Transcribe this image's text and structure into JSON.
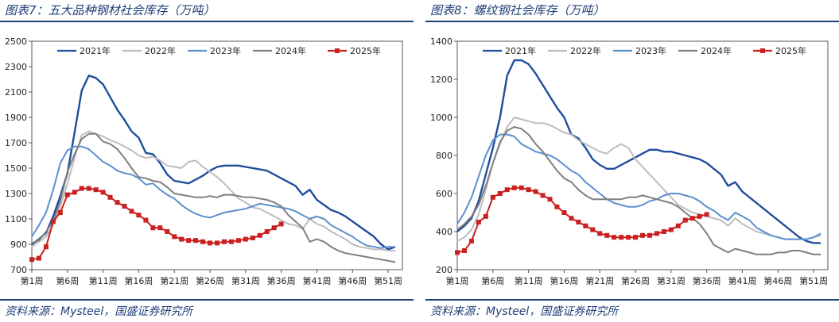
{
  "chart_data": [
    {
      "type": "line",
      "title": "图表7：五大品种钢材社会库存（万吨）",
      "source": "资料来源：Mysteel，国盛证券研究所",
      "xlabel": "",
      "ylabel": "",
      "ylim": [
        700,
        2500
      ],
      "yticks": [
        700,
        900,
        1100,
        1300,
        1500,
        1700,
        1900,
        2100,
        2300,
        2500
      ],
      "xlim": [
        1,
        53
      ],
      "xticks": [
        "第1周",
        "第6周",
        "第11周",
        "第16周",
        "第21周",
        "第26周",
        "第31周",
        "第36周",
        "第41周",
        "第46周",
        "第51周"
      ],
      "legend_position": "top",
      "series": [
        {
          "name": "2021年",
          "color": "#1f4e9c",
          "x": [
            1,
            2,
            3,
            4,
            5,
            6,
            7,
            8,
            9,
            10,
            11,
            12,
            13,
            14,
            15,
            16,
            17,
            18,
            19,
            20,
            21,
            22,
            23,
            24,
            25,
            26,
            27,
            28,
            29,
            30,
            31,
            32,
            33,
            34,
            35,
            36,
            37,
            38,
            39,
            40,
            41,
            42,
            43,
            44,
            45,
            46,
            47,
            48,
            49,
            50,
            51,
            52
          ],
          "values": [
            900,
            940,
            990,
            1120,
            1280,
            1460,
            1780,
            2110,
            2230,
            2210,
            2160,
            2060,
            1960,
            1880,
            1790,
            1740,
            1620,
            1610,
            1540,
            1450,
            1400,
            1390,
            1380,
            1410,
            1440,
            1480,
            1510,
            1520,
            1520,
            1520,
            1510,
            1500,
            1490,
            1480,
            1450,
            1420,
            1390,
            1360,
            1290,
            1330,
            1250,
            1210,
            1170,
            1150,
            1120,
            1080,
            1040,
            1000,
            960,
            900,
            860,
            880
          ]
        },
        {
          "name": "2022年",
          "color": "#bdbdbd",
          "x": [
            1,
            2,
            3,
            4,
            5,
            6,
            7,
            8,
            9,
            10,
            11,
            12,
            13,
            14,
            15,
            16,
            17,
            18,
            19,
            20,
            21,
            22,
            23,
            24,
            25,
            26,
            27,
            28,
            29,
            30,
            31,
            32,
            33,
            34,
            35,
            36,
            37,
            38,
            39,
            40,
            41,
            42,
            43,
            44,
            45,
            46,
            47,
            48,
            49,
            50,
            51,
            52
          ],
          "values": [
            880,
            920,
            960,
            1050,
            1200,
            1380,
            1580,
            1760,
            1790,
            1770,
            1750,
            1720,
            1700,
            1670,
            1640,
            1600,
            1580,
            1590,
            1560,
            1520,
            1510,
            1500,
            1550,
            1560,
            1510,
            1470,
            1430,
            1380,
            1320,
            1260,
            1230,
            1190,
            1180,
            1150,
            1120,
            1090,
            1060,
            1050,
            1020,
            1100,
            1060,
            1040,
            1000,
            970,
            940,
            900,
            880,
            870,
            860,
            860,
            850,
            850
          ]
        },
        {
          "name": "2023年",
          "color": "#5b8fd0",
          "x": [
            1,
            2,
            3,
            4,
            5,
            6,
            7,
            8,
            9,
            10,
            11,
            12,
            13,
            14,
            15,
            16,
            17,
            18,
            19,
            20,
            21,
            22,
            23,
            24,
            25,
            26,
            27,
            28,
            29,
            30,
            31,
            32,
            33,
            34,
            35,
            36,
            37,
            38,
            39,
            40,
            41,
            42,
            43,
            44,
            45,
            46,
            47,
            48,
            49,
            50,
            51,
            52
          ],
          "values": [
            960,
            1050,
            1150,
            1330,
            1540,
            1640,
            1670,
            1670,
            1650,
            1600,
            1550,
            1520,
            1480,
            1460,
            1450,
            1420,
            1370,
            1380,
            1330,
            1290,
            1260,
            1210,
            1170,
            1140,
            1120,
            1110,
            1130,
            1150,
            1160,
            1170,
            1180,
            1200,
            1220,
            1210,
            1200,
            1190,
            1180,
            1160,
            1130,
            1100,
            1120,
            1100,
            1050,
            1020,
            990,
            960,
            920,
            890,
            880,
            870,
            880,
            880
          ]
        },
        {
          "name": "2024年",
          "color": "#7f7f7f",
          "x": [
            1,
            2,
            3,
            4,
            5,
            6,
            7,
            8,
            9,
            10,
            11,
            12,
            13,
            14,
            15,
            16,
            17,
            18,
            19,
            20,
            21,
            22,
            23,
            24,
            25,
            26,
            27,
            28,
            29,
            30,
            31,
            32,
            33,
            34,
            35,
            36,
            37,
            38,
            39,
            40,
            41,
            42,
            43,
            44,
            45,
            46,
            47,
            48,
            49,
            50,
            51,
            52
          ],
          "values": [
            910,
            930,
            1000,
            1080,
            1240,
            1470,
            1610,
            1730,
            1770,
            1770,
            1710,
            1690,
            1650,
            1580,
            1500,
            1430,
            1420,
            1400,
            1390,
            1350,
            1300,
            1290,
            1280,
            1270,
            1270,
            1280,
            1270,
            1290,
            1290,
            1280,
            1270,
            1270,
            1260,
            1250,
            1230,
            1200,
            1130,
            1080,
            1030,
            920,
            940,
            920,
            880,
            850,
            830,
            820,
            810,
            800,
            790,
            780,
            770,
            760
          ]
        },
        {
          "name": "2025年",
          "color": "#cc1f1f",
          "x": [
            1,
            2,
            3,
            4,
            5,
            6,
            7,
            8,
            9,
            10,
            11,
            12,
            13,
            14,
            15,
            16,
            17,
            18,
            19,
            20,
            21,
            22,
            23,
            24,
            25,
            26,
            27,
            28,
            29,
            30,
            31,
            32,
            33,
            34,
            35,
            36
          ],
          "values": [
            780,
            790,
            880,
            1080,
            1150,
            1290,
            1310,
            1340,
            1340,
            1330,
            1310,
            1270,
            1230,
            1200,
            1160,
            1130,
            1090,
            1030,
            1030,
            1000,
            960,
            940,
            930,
            930,
            920,
            910,
            910,
            920,
            920,
            930,
            940,
            950,
            970,
            1000,
            1030,
            1060
          ]
        }
      ]
    },
    {
      "type": "line",
      "title": "图表8：螺纹钢社会库存（万吨）",
      "source": "资料来源：Mysteel，国盛证券研究所",
      "xlabel": "",
      "ylabel": "",
      "ylim": [
        200,
        1400
      ],
      "yticks": [
        200,
        400,
        600,
        800,
        1000,
        1200,
        1400
      ],
      "xlim": [
        1,
        53
      ],
      "xticks": [
        "第1周",
        "第6周",
        "第11周",
        "第16周",
        "第21周",
        "第26周",
        "第31周",
        "第36周",
        "第41周",
        "第46周",
        "第51周"
      ],
      "legend_position": "top",
      "series": [
        {
          "name": "2021年",
          "color": "#1f4e9c",
          "x": [
            1,
            2,
            3,
            4,
            5,
            6,
            7,
            8,
            9,
            10,
            11,
            12,
            13,
            14,
            15,
            16,
            17,
            18,
            19,
            20,
            21,
            22,
            23,
            24,
            25,
            26,
            27,
            28,
            29,
            30,
            31,
            32,
            33,
            34,
            35,
            36,
            37,
            38,
            39,
            40,
            41,
            42,
            43,
            44,
            45,
            46,
            47,
            48,
            49,
            50,
            51,
            52
          ],
          "values": [
            400,
            430,
            470,
            560,
            700,
            840,
            1000,
            1220,
            1300,
            1300,
            1280,
            1230,
            1170,
            1110,
            1050,
            1000,
            910,
            890,
            840,
            780,
            750,
            730,
            730,
            750,
            770,
            790,
            810,
            830,
            830,
            820,
            820,
            810,
            800,
            790,
            780,
            760,
            730,
            700,
            640,
            660,
            610,
            580,
            550,
            520,
            490,
            460,
            430,
            400,
            370,
            350,
            340,
            340
          ]
        },
        {
          "name": "2022年",
          "color": "#bdbdbd",
          "x": [
            1,
            2,
            3,
            4,
            5,
            6,
            7,
            8,
            9,
            10,
            11,
            12,
            13,
            14,
            15,
            16,
            17,
            18,
            19,
            20,
            21,
            22,
            23,
            24,
            25,
            26,
            27,
            28,
            29,
            30,
            31,
            32,
            33,
            34,
            35,
            36,
            37,
            38,
            39,
            40,
            41,
            42,
            43,
            44,
            45,
            46,
            47,
            48,
            49,
            50,
            51,
            52
          ],
          "values": [
            350,
            370,
            410,
            490,
            620,
            760,
            860,
            950,
            1000,
            990,
            980,
            970,
            970,
            960,
            940,
            920,
            910,
            880,
            860,
            840,
            820,
            810,
            840,
            860,
            840,
            780,
            740,
            700,
            660,
            620,
            580,
            540,
            520,
            500,
            490,
            480,
            470,
            460,
            430,
            470,
            440,
            420,
            400,
            390,
            380,
            370,
            360,
            360,
            360,
            360,
            370,
            380
          ]
        },
        {
          "name": "2023年",
          "color": "#5b8fd0",
          "x": [
            1,
            2,
            3,
            4,
            5,
            6,
            7,
            8,
            9,
            10,
            11,
            12,
            13,
            14,
            15,
            16,
            17,
            18,
            19,
            20,
            21,
            22,
            23,
            24,
            25,
            26,
            27,
            28,
            29,
            30,
            31,
            32,
            33,
            34,
            35,
            36,
            37,
            38,
            39,
            40,
            41,
            42,
            43,
            44,
            45,
            46,
            47,
            48,
            49,
            50,
            51,
            52
          ],
          "values": [
            440,
            500,
            580,
            690,
            800,
            880,
            910,
            910,
            900,
            860,
            840,
            820,
            810,
            800,
            780,
            750,
            720,
            700,
            660,
            630,
            600,
            570,
            550,
            540,
            530,
            530,
            540,
            560,
            570,
            590,
            600,
            600,
            590,
            580,
            560,
            530,
            510,
            480,
            460,
            500,
            480,
            460,
            420,
            400,
            380,
            370,
            360,
            360,
            360,
            360,
            370,
            390
          ]
        },
        {
          "name": "2024年",
          "color": "#7f7f7f",
          "x": [
            1,
            2,
            3,
            4,
            5,
            6,
            7,
            8,
            9,
            10,
            11,
            12,
            13,
            14,
            15,
            16,
            17,
            18,
            19,
            20,
            21,
            22,
            23,
            24,
            25,
            26,
            27,
            28,
            29,
            30,
            31,
            32,
            33,
            34,
            35,
            36,
            37,
            38,
            39,
            40,
            41,
            42,
            43,
            44,
            45,
            46,
            47,
            48,
            49,
            50,
            51,
            52
          ],
          "values": [
            410,
            440,
            480,
            540,
            640,
            760,
            870,
            930,
            950,
            940,
            910,
            860,
            820,
            770,
            720,
            680,
            660,
            620,
            590,
            570,
            570,
            570,
            570,
            570,
            580,
            580,
            590,
            580,
            570,
            560,
            550,
            530,
            500,
            470,
            440,
            390,
            330,
            310,
            290,
            310,
            300,
            290,
            280,
            280,
            280,
            290,
            290,
            300,
            300,
            290,
            280,
            280
          ]
        },
        {
          "name": "2025年",
          "color": "#cc1f1f",
          "x": [
            1,
            2,
            3,
            4,
            5,
            6,
            7,
            8,
            9,
            10,
            11,
            12,
            13,
            14,
            15,
            16,
            17,
            18,
            19,
            20,
            21,
            22,
            23,
            24,
            25,
            26,
            27,
            28,
            29,
            30,
            31,
            32,
            33,
            34,
            35,
            36
          ],
          "values": [
            290,
            300,
            350,
            450,
            480,
            580,
            600,
            620,
            630,
            630,
            620,
            610,
            590,
            570,
            530,
            500,
            470,
            450,
            430,
            410,
            390,
            380,
            370,
            370,
            370,
            370,
            380,
            380,
            390,
            400,
            410,
            430,
            460,
            470,
            480,
            490
          ]
        }
      ]
    }
  ]
}
